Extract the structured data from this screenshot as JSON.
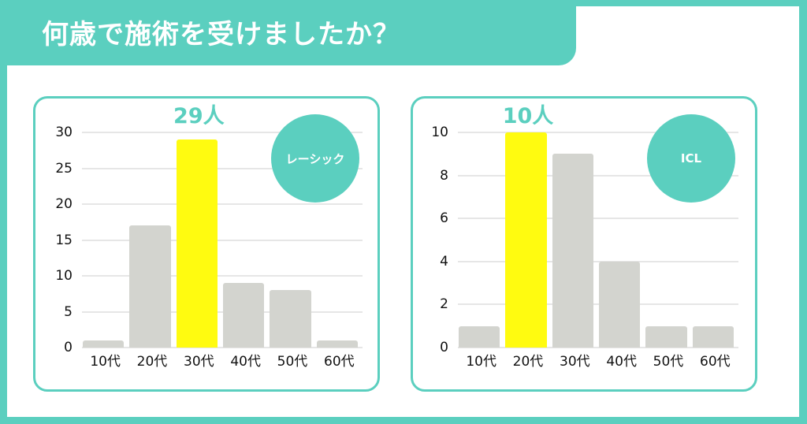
{
  "title": "何歳で施術を受けましたか？",
  "colors": {
    "accent": "#5bcfbf",
    "highlight": "#fffb10",
    "bar": "#d3d4cf",
    "grid": "#e6e6e6"
  },
  "chart_data": [
    {
      "type": "bar",
      "title": "レーシック",
      "categories": [
        "10代",
        "20代",
        "30代",
        "40代",
        "50代",
        "60代"
      ],
      "values": [
        1,
        17,
        29,
        9,
        8,
        1
      ],
      "highlight_index": 2,
      "callout": "29人",
      "yticks": [
        "0",
        "5",
        "10",
        "15",
        "20",
        "25",
        "30"
      ],
      "ylim": [
        0,
        30
      ],
      "xlabel": "",
      "ylabel": "",
      "grid": true
    },
    {
      "type": "bar",
      "title": "ICL",
      "categories": [
        "10代",
        "20代",
        "30代",
        "40代",
        "50代",
        "60代"
      ],
      "values": [
        1,
        10,
        9,
        4,
        1,
        1
      ],
      "highlight_index": 1,
      "callout": "10人",
      "yticks": [
        "0",
        "2",
        "4",
        "6",
        "8",
        "10"
      ],
      "ylim": [
        0,
        10
      ],
      "xlabel": "",
      "ylabel": "",
      "grid": true
    }
  ]
}
